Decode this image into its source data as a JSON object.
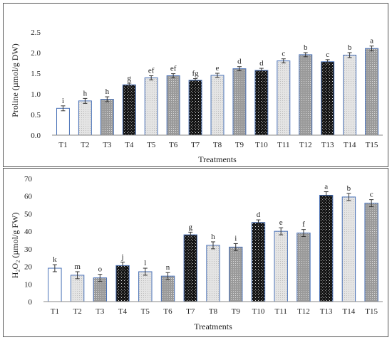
{
  "chart_data": [
    {
      "type": "bar",
      "categories": [
        "T1",
        "T2",
        "T3",
        "T4",
        "T5",
        "T6",
        "T7",
        "T8",
        "T9",
        "T10",
        "T11",
        "T12",
        "T13",
        "T14",
        "T15"
      ],
      "values": [
        0.65,
        0.83,
        0.87,
        1.22,
        1.39,
        1.44,
        1.33,
        1.45,
        1.61,
        1.57,
        1.8,
        1.95,
        1.78,
        1.94,
        2.1
      ],
      "errors": [
        0.06,
        0.06,
        0.06,
        0.04,
        0.05,
        0.05,
        0.04,
        0.05,
        0.05,
        0.05,
        0.05,
        0.05,
        0.05,
        0.06,
        0.06
      ],
      "letters": [
        "i",
        "h",
        "h",
        "g",
        "ef",
        "ef",
        "fg",
        "e",
        "d",
        "d",
        "c",
        "b",
        "c",
        "b",
        "a"
      ],
      "patterns": [
        "white",
        "light",
        "gray",
        "dark",
        "light",
        "gray",
        "dark",
        "light",
        "gray",
        "dark",
        "light",
        "gray",
        "dark",
        "light",
        "gray"
      ],
      "title": "",
      "xlabel": "Treatments",
      "ylabel": "Proline (µmol/g DW)",
      "ylim": [
        0,
        2.5
      ],
      "yticks": [
        "0.0",
        "0.5",
        "1.0",
        "1.5",
        "2.0",
        "2.5"
      ],
      "grid": false
    },
    {
      "type": "bar",
      "categories": [
        "T1",
        "T2",
        "T3",
        "T4",
        "T5",
        "T6",
        "T7",
        "T8",
        "T9",
        "T10",
        "T11",
        "T12",
        "T13",
        "T14",
        "T15"
      ],
      "values": [
        19,
        15,
        13.5,
        20.5,
        17,
        14.5,
        38,
        32,
        31,
        45,
        40,
        39,
        60.5,
        59.5,
        56
      ],
      "errors": [
        2,
        2,
        2,
        2,
        2,
        2,
        1.5,
        2,
        2,
        1.5,
        2,
        2,
        2,
        2,
        2
      ],
      "letters": [
        "k",
        "m",
        "o",
        "j",
        "l",
        "n",
        "g",
        "h",
        "i",
        "d",
        "e",
        "f",
        "a",
        "b",
        "c"
      ],
      "patterns": [
        "white",
        "light",
        "gray",
        "dark",
        "light",
        "gray",
        "dark",
        "light",
        "gray",
        "dark",
        "light",
        "gray",
        "dark",
        "light",
        "gray"
      ],
      "title": "",
      "xlabel": "Treatments",
      "ylabel": "H₂O₂ (µmol/g FW)",
      "ylim": [
        0,
        70
      ],
      "yticks": [
        "0",
        "10",
        "20",
        "30",
        "40",
        "50",
        "60",
        "70"
      ],
      "grid": false
    }
  ],
  "colors": {
    "bar_outline": "#4a72b8",
    "white_fill": "#ffffff",
    "light_fill": "#e4e4e4",
    "gray_fill": "#9a9a9a",
    "dark_fill": "#141414"
  }
}
